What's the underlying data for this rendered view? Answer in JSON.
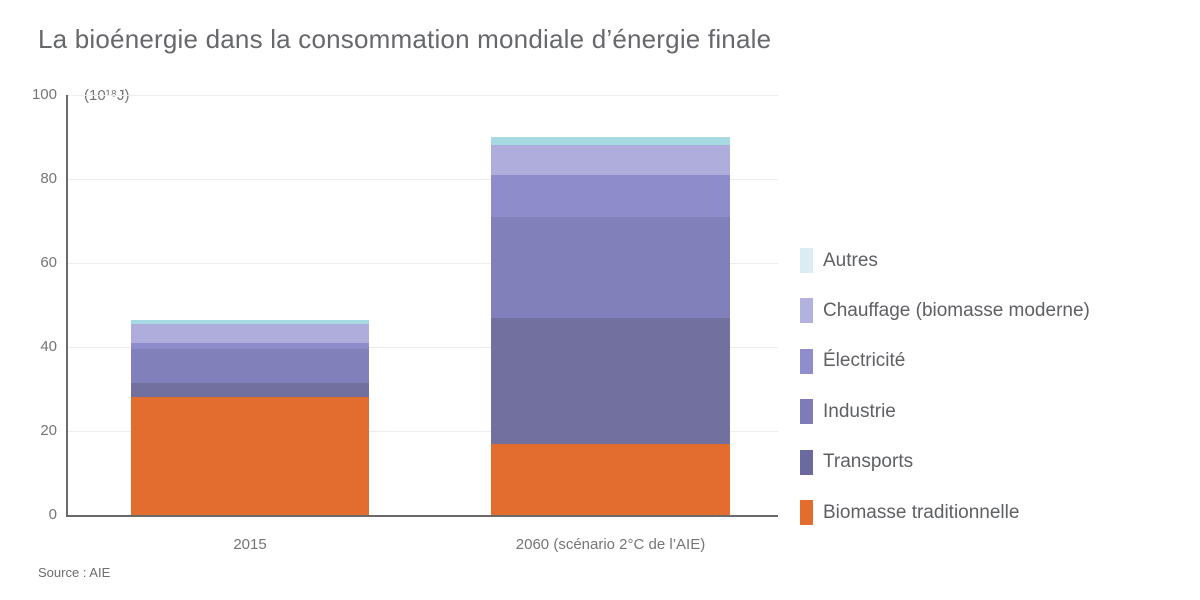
{
  "title": "La bioénergie dans la consommation mondiale d’énergie finale",
  "source": "Source : AIE",
  "y_axis_unit": "(10¹⁸J)",
  "chart_data": {
    "type": "bar",
    "stacked": true,
    "title": "La bioénergie dans la consommation mondiale d’énergie finale",
    "ylabel": "(10¹⁸J)",
    "xlabel": "",
    "ylim": [
      0,
      100
    ],
    "yticks": [
      0,
      20,
      40,
      60,
      80,
      100
    ],
    "grid": true,
    "legend_position": "right",
    "categories": [
      "2015",
      "2060 (scénario 2°C de l’AIE)"
    ],
    "series": [
      {
        "name": "Biomasse traditionnelle",
        "color": "#e26d2f",
        "legend_color": "#e26d2f",
        "values": [
          28,
          17
        ]
      },
      {
        "name": "Transports",
        "color": "#72709f",
        "legend_color": "#6b6a9e",
        "values": [
          3.5,
          30
        ]
      },
      {
        "name": "Industrie",
        "color": "#8280ba",
        "legend_color": "#7e7bb8",
        "values": [
          8,
          24
        ]
      },
      {
        "name": "Électricité",
        "color": "#8e8cca",
        "legend_color": "#8f8dcb",
        "values": [
          1.5,
          10
        ]
      },
      {
        "name": "Chauffage (biomasse moderne)",
        "color": "#afaddb",
        "legend_color": "#b3b1dd",
        "values": [
          4.5,
          7
        ]
      },
      {
        "name": "Autres",
        "color": "#a6d9e2",
        "legend_color": "#d9edf2",
        "values": [
          1,
          2
        ]
      }
    ],
    "totals": [
      46.5,
      90
    ],
    "legend_order_top_to_bottom": [
      "Autres",
      "Chauffage (biomasse moderne)",
      "Électricité",
      "Industrie",
      "Transports",
      "Biomasse traditionnelle"
    ]
  }
}
